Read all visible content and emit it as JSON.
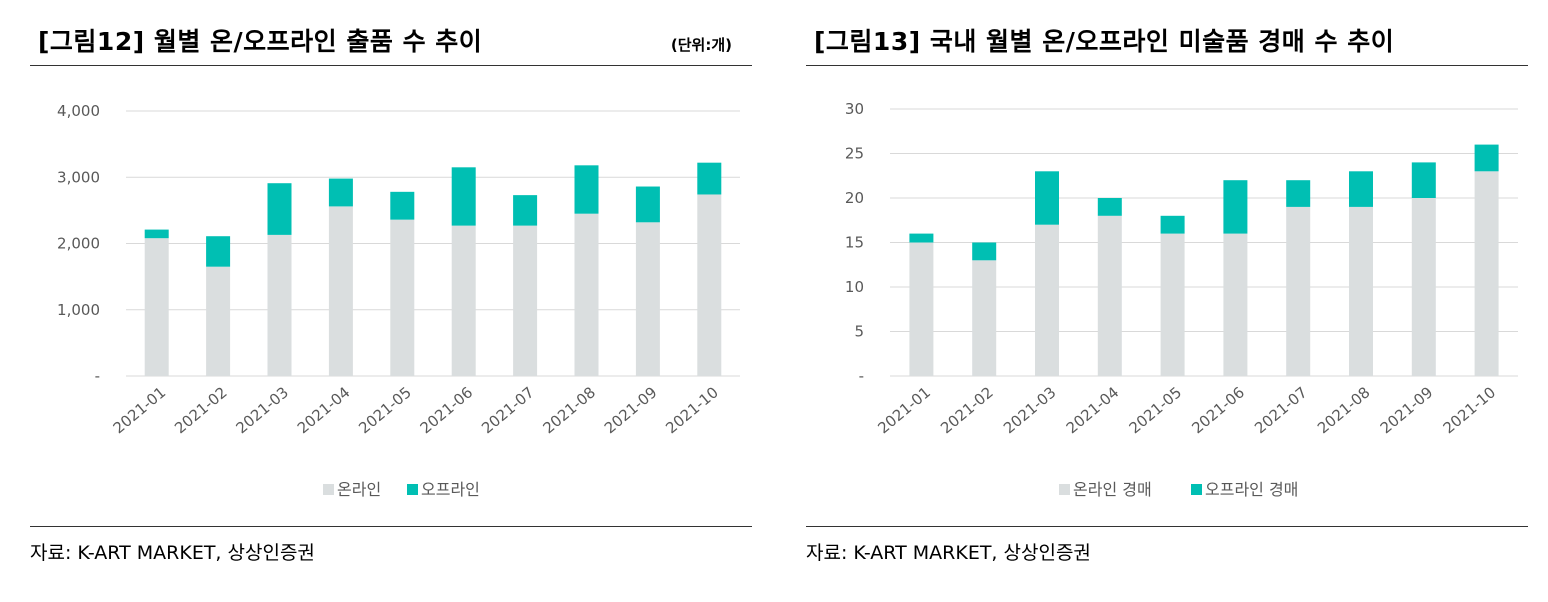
{
  "colors": {
    "online": "#dadedf",
    "offline": "#00bfb3",
    "grid": "#d9d9d9"
  },
  "source_left": "자료: K-ART MARKET, 상상인증권",
  "source_right": "자료: K-ART MARKET, 상상인증권",
  "chart_data": [
    {
      "type": "bar",
      "stacked": true,
      "title": "[그림12] 월별 온/오프라인 출품 수 추이",
      "unit": "(단위:개)",
      "categories": [
        "2021-01",
        "2021-02",
        "2021-03",
        "2021-04",
        "2021-05",
        "2021-06",
        "2021-07",
        "2021-08",
        "2021-09",
        "2021-10"
      ],
      "series": [
        {
          "name": "온라인",
          "values": [
            2080,
            1650,
            2130,
            2560,
            2360,
            2270,
            2270,
            2450,
            2320,
            2740
          ]
        },
        {
          "name": "오프라인",
          "values": [
            130,
            460,
            780,
            420,
            420,
            880,
            460,
            730,
            540,
            480
          ]
        }
      ],
      "ylim": [
        0,
        4000
      ],
      "yticks": [
        0,
        1000,
        2000,
        3000,
        4000
      ],
      "ytick_labels": [
        "-",
        "1,000",
        "2,000",
        "3,000",
        "4,000"
      ],
      "grid": true,
      "legend": "bottom"
    },
    {
      "type": "bar",
      "stacked": true,
      "title": "[그림13] 국내 월별 온/오프라인 미술품 경매 수 추이",
      "categories": [
        "2021-01",
        "2021-02",
        "2021-03",
        "2021-04",
        "2021-05",
        "2021-06",
        "2021-07",
        "2021-08",
        "2021-09",
        "2021-10"
      ],
      "series": [
        {
          "name": "온라인 경매",
          "values": [
            15,
            13,
            17,
            18,
            16,
            16,
            19,
            19,
            20,
            23
          ]
        },
        {
          "name": "오프라인 경매",
          "values": [
            1,
            2,
            6,
            2,
            2,
            6,
            3,
            4,
            4,
            3
          ]
        }
      ],
      "ylim": [
        0,
        30
      ],
      "yticks": [
        0,
        5,
        10,
        15,
        20,
        25,
        30
      ],
      "ytick_labels": [
        "-",
        "5",
        "10",
        "15",
        "20",
        "25",
        "30"
      ],
      "grid": true,
      "legend": "bottom"
    }
  ]
}
